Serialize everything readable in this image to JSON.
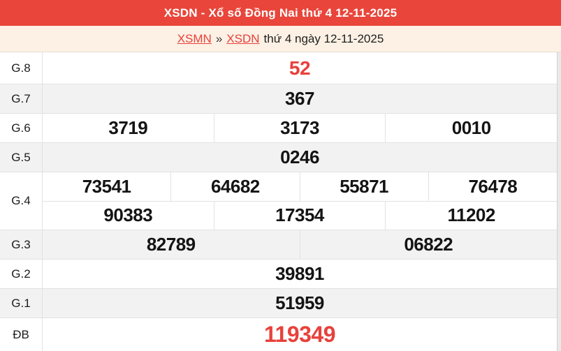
{
  "header": {
    "title": "XSDN - Xổ số Đồng Nai thứ 4 12-11-2025"
  },
  "breadcrumb": {
    "link1": "XSMN",
    "separator": "»",
    "link2": "XSDN",
    "suffix": "thứ 4 ngày 12-11-2025"
  },
  "colors": {
    "header_bg": "#e9453a",
    "breadcrumb_bg": "#fcf1e4",
    "highlight_red": "#e8413c",
    "row_alt_bg": "#f2f2f2",
    "border": "#e2e2e2"
  },
  "table": {
    "rows": [
      {
        "label": "G.8",
        "cells": [
          "52"
        ]
      },
      {
        "label": "G.7",
        "cells": [
          "367"
        ]
      },
      {
        "label": "G.6",
        "cells": [
          "3719",
          "3173",
          "0010"
        ]
      },
      {
        "label": "G.5",
        "cells": [
          "0246"
        ]
      },
      {
        "label": "G.4",
        "line1": [
          "73541",
          "64682",
          "55871",
          "76478"
        ],
        "line2": [
          "90383",
          "17354",
          "11202"
        ]
      },
      {
        "label": "G.3",
        "cells": [
          "82789",
          "06822"
        ]
      },
      {
        "label": "G.2",
        "cells": [
          "39891"
        ]
      },
      {
        "label": "G.1",
        "cells": [
          "51959"
        ]
      },
      {
        "label": "ĐB",
        "cells": [
          "119349"
        ]
      }
    ]
  }
}
